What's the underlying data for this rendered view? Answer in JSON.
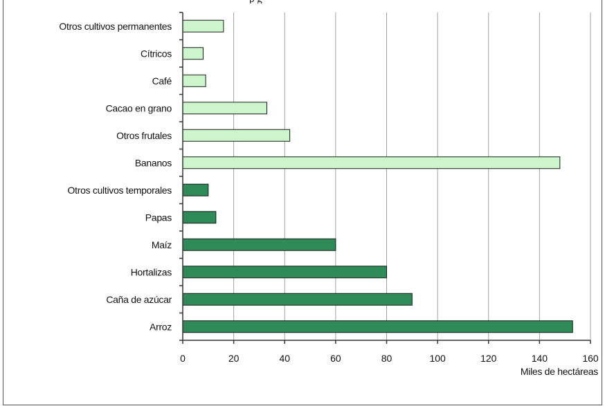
{
  "page": {
    "top_fragment": "p                                                       g"
  },
  "chart_data": {
    "type": "bar",
    "orientation": "horizontal",
    "categories": [
      "Otros cultivos permanentes",
      "Cítricos",
      "Café",
      "Cacao en grano",
      "Otros frutales",
      "Bananos",
      "Otros cultivos temporales",
      "Papas",
      "Maíz",
      "Hortalizas",
      "Caña de azúcar",
      "Arroz"
    ],
    "values": [
      16,
      8,
      9,
      33,
      42,
      148,
      10,
      13,
      60,
      80,
      90,
      153
    ],
    "bar_group": [
      "permanent",
      "permanent",
      "permanent",
      "permanent",
      "permanent",
      "permanent",
      "temporary",
      "temporary",
      "temporary",
      "temporary",
      "temporary",
      "temporary"
    ],
    "colors": {
      "permanent": "#ccf5cc",
      "temporary": "#2e8b57",
      "grid": "#a0a0a0",
      "axis": "#333333"
    },
    "xlim": [
      0,
      160
    ],
    "xticks": [
      0,
      20,
      40,
      60,
      80,
      100,
      120,
      140,
      160
    ],
    "xticklabels": [
      "0",
      "20",
      "40",
      "60",
      "80",
      "100",
      "120",
      "140",
      "160"
    ],
    "xlabel": "Miles de hectáreas",
    "ylabel": "",
    "title": "",
    "grid": "vertical"
  }
}
